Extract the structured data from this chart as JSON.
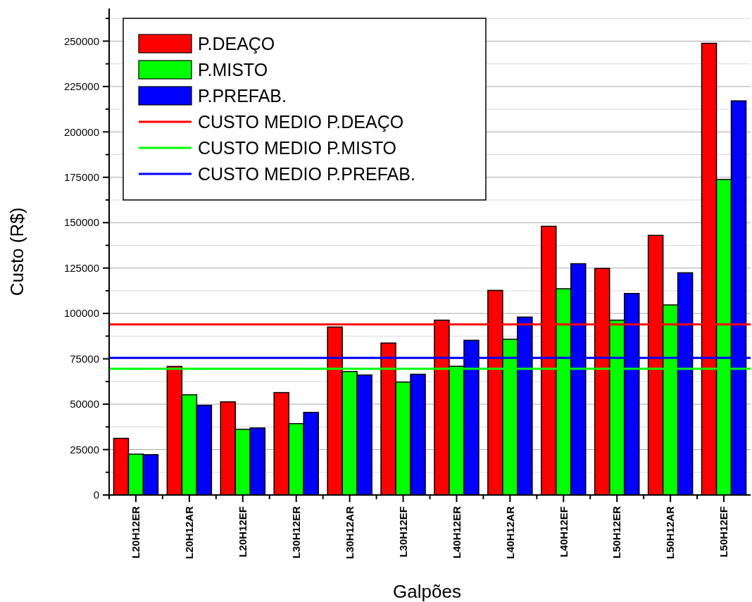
{
  "chart_data": {
    "type": "bar",
    "xlabel": "Galpões",
    "ylabel": "Custo (R$)",
    "categories": [
      "L20H12ER",
      "L20H12AR",
      "L20H12EF",
      "L30H12ER",
      "L30H12AR",
      "L30H12EF",
      "L40H12ER",
      "L40H12AR",
      "L40H12EF",
      "L50H12ER",
      "L50H12AR",
      "L50H12EF"
    ],
    "series": [
      {
        "name": "P.DEAÇO",
        "color": "#ff0000",
        "values": [
          31200,
          70800,
          51300,
          56400,
          92500,
          83700,
          96300,
          112700,
          148000,
          124800,
          143000,
          248800
        ]
      },
      {
        "name": "P.MISTO",
        "color": "#00ff00",
        "values": [
          22500,
          55200,
          36200,
          39300,
          68000,
          62200,
          70900,
          85800,
          113600,
          96300,
          104700,
          173800
        ]
      },
      {
        "name": "P.PREFAB.",
        "color": "#0000ff",
        "values": [
          22200,
          49400,
          36900,
          45500,
          66100,
          66500,
          85200,
          98000,
          127400,
          111000,
          122400,
          217100
        ]
      }
    ],
    "ref_lines": [
      {
        "axis": "y",
        "value": 94000,
        "label": "CUSTO MEDIO P.DEAÇO",
        "color": "#ff0000"
      },
      {
        "axis": "y",
        "value": 69500,
        "label": "CUSTO MEDIO P.MISTO",
        "color": "#00ff00"
      },
      {
        "axis": "y",
        "value": 75500,
        "label": "CUSTO MEDIO P.PREFAB.",
        "color": "#0000ff"
      }
    ],
    "ylim": [
      0,
      268000
    ],
    "yticks": [
      0,
      {
        "value": 12500,
        "label": null
      },
      25000,
      {
        "value": 37500,
        "label": null
      },
      50000,
      {
        "value": 62500,
        "label": null
      },
      75000,
      {
        "value": 87500,
        "label": null
      },
      100000,
      {
        "value": 112500,
        "label": null
      },
      125000,
      {
        "value": 137500,
        "label": null
      },
      150000,
      {
        "value": 162500,
        "label": null
      },
      175000,
      {
        "value": 187500,
        "label": null
      },
      200000,
      {
        "value": 212500,
        "label": null
      },
      225000,
      {
        "value": 237500,
        "label": null
      },
      250000,
      {
        "value": 262500,
        "label": null
      }
    ],
    "grid": "y",
    "legend": "top left"
  }
}
